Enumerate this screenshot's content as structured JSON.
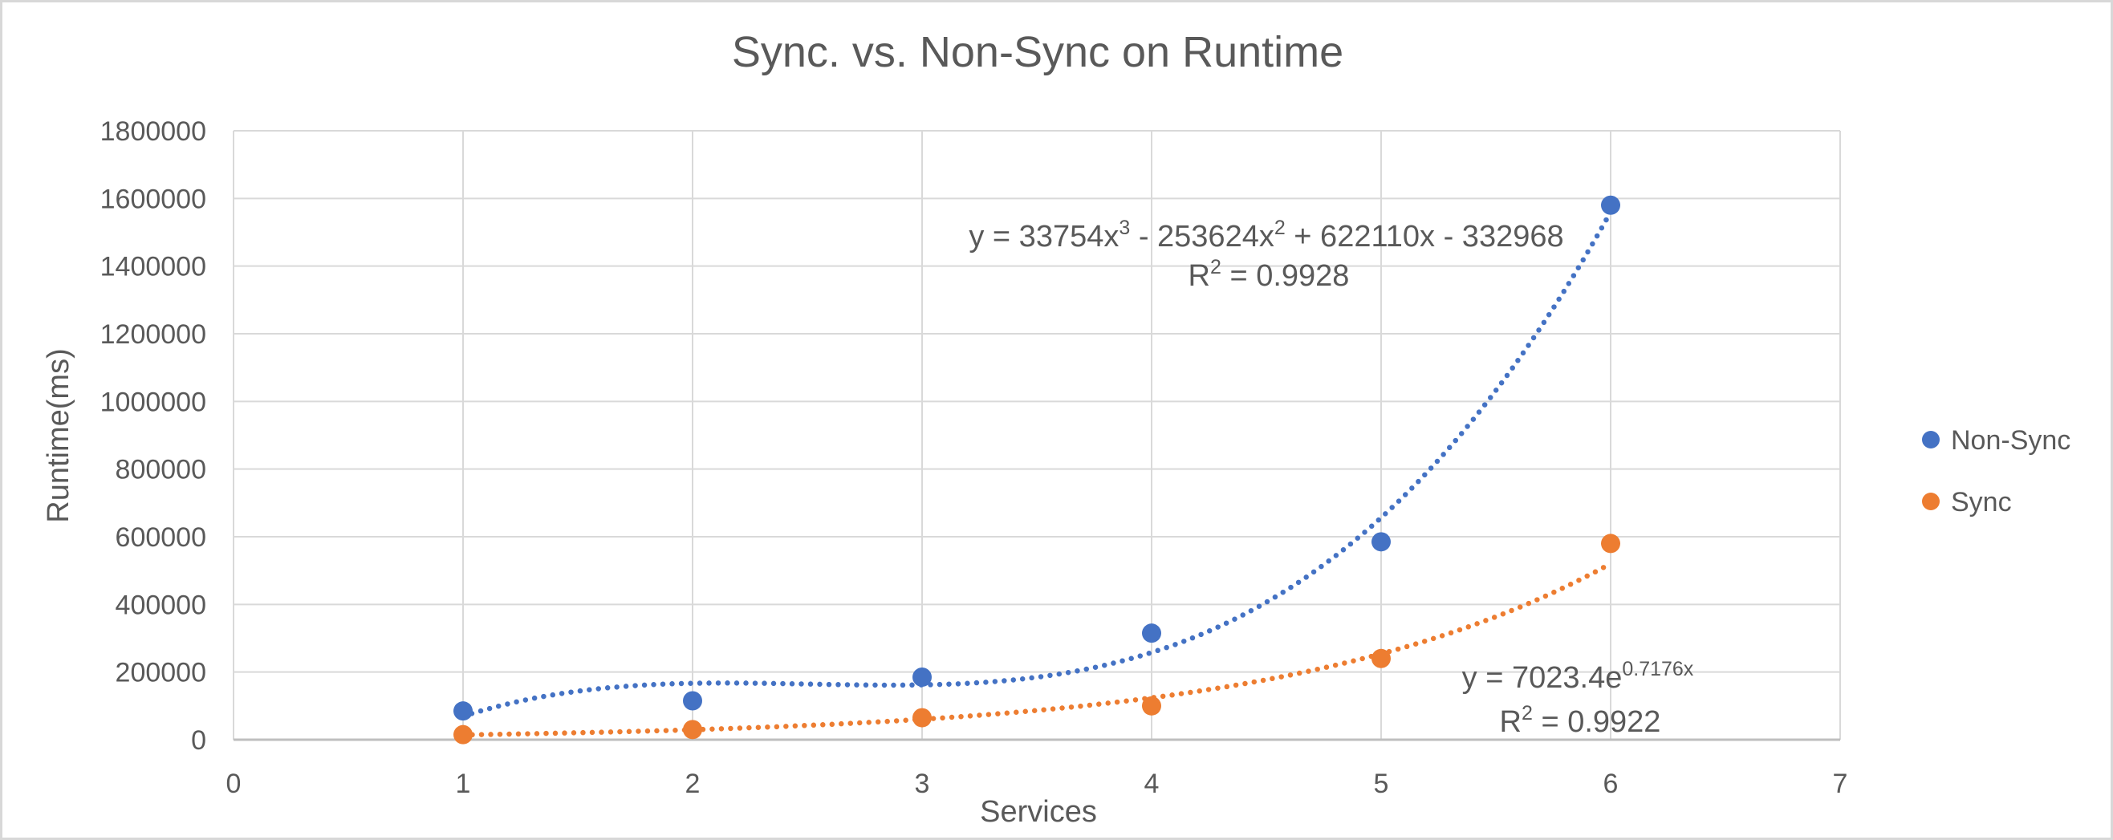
{
  "chart_data": {
    "type": "scatter",
    "title": "Sync. vs. Non-Sync on Runtime",
    "xlabel": "Services",
    "ylabel": "Runtime(ms)",
    "xlim": [
      0,
      7
    ],
    "ylim": [
      0,
      1800000
    ],
    "x_ticks": [
      0,
      1,
      2,
      3,
      4,
      5,
      6,
      7
    ],
    "y_ticks": [
      0,
      200000,
      400000,
      600000,
      800000,
      1000000,
      1200000,
      1400000,
      1600000,
      1800000
    ],
    "grid": true,
    "legend_position": "right",
    "x": [
      1,
      2,
      3,
      4,
      5,
      6
    ],
    "series": [
      {
        "name": "Non-Sync",
        "color": "#4472C4",
        "values": [
          85000,
          115000,
          185000,
          315000,
          585000,
          1580000
        ],
        "trendline": {
          "type": "polynomial",
          "order": 3,
          "coefficients": [
            33754,
            -253624,
            622110,
            -332968
          ],
          "equation": "y = 33754x^3 - 253624x^2 + 622110x - 332968",
          "r_squared_label": "R^2 = 0.9928"
        }
      },
      {
        "name": "Sync",
        "color": "#ED7D31",
        "values": [
          15000,
          30000,
          65000,
          100000,
          240000,
          580000
        ],
        "trendline": {
          "type": "exponential",
          "coefficients": [
            7023.4,
            0.7176
          ],
          "equation": "y = 7023.4e^0.7176x",
          "r_squared_label": "R^2 = 0.9922"
        }
      }
    ],
    "colors": {
      "text": "#595959",
      "gridline": "#D9D9D9",
      "axis_line": "#BFBFBF",
      "background": "#FFFFFF",
      "border": "#D8D8D8"
    }
  }
}
